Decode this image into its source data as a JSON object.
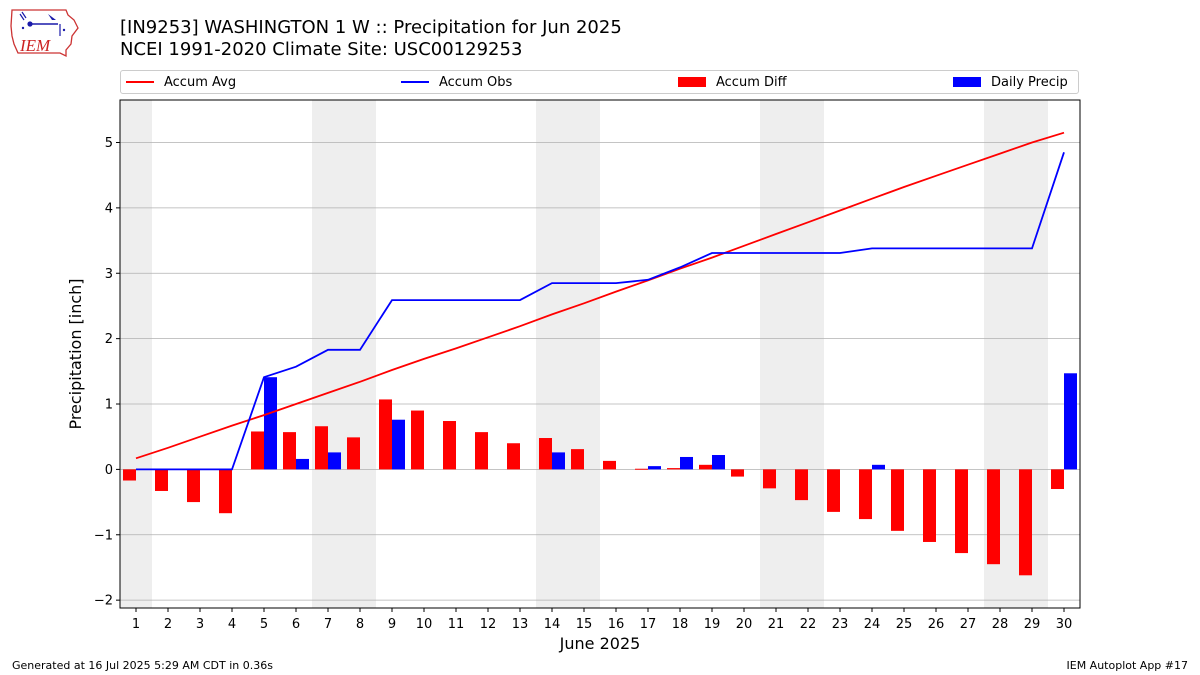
{
  "header": {
    "title_line1": "[IN9253] WASHINGTON 1 W :: Precipitation for Jun 2025",
    "title_line2": "NCEI 1991-2020 Climate Site: USC00129253"
  },
  "logo": {
    "text": "IEM",
    "icon": "iowa-state-map-logo-icon"
  },
  "legend": {
    "items": [
      {
        "label": "Accum Avg",
        "kind": "line",
        "color": "#ff0000"
      },
      {
        "label": "Accum Obs",
        "kind": "line",
        "color": "#0000ff"
      },
      {
        "label": "Accum Diff",
        "kind": "bar",
        "color": "#ff0000"
      },
      {
        "label": "Daily Precip",
        "kind": "bar",
        "color": "#0000ff"
      }
    ]
  },
  "footer": {
    "left": "Generated at 16 Jul 2025 5:29 AM CDT in 0.36s",
    "right": "IEM Autoplot App #17"
  },
  "colors": {
    "avg": "#ff0000",
    "obs": "#0000ff",
    "weekend": "#eeeeee",
    "grid": "#b0b0b0"
  },
  "chart_data": {
    "type": "bar",
    "xlabel": "June 2025",
    "ylabel": "Precipitation [inch]",
    "ylim": [
      -2.12,
      5.65
    ],
    "yticks": [
      -2,
      -1,
      0,
      1,
      2,
      3,
      4,
      5
    ],
    "ytick_labels": [
      "−2",
      "−1",
      "0",
      "1",
      "2",
      "3",
      "4",
      "5"
    ],
    "grid": "y",
    "legend_position": "top",
    "categories": [
      "1",
      "2",
      "3",
      "4",
      "5",
      "6",
      "7",
      "8",
      "9",
      "10",
      "11",
      "12",
      "13",
      "14",
      "15",
      "16",
      "17",
      "18",
      "19",
      "20",
      "21",
      "22",
      "23",
      "24",
      "25",
      "26",
      "27",
      "28",
      "29",
      "30"
    ],
    "weekend_days": [
      1,
      7,
      8,
      14,
      15,
      21,
      22,
      28,
      29
    ],
    "series": [
      {
        "name": "Accum Avg",
        "type": "line",
        "values": [
          0.17,
          0.33,
          0.5,
          0.67,
          0.83,
          1.0,
          1.17,
          1.34,
          1.52,
          1.69,
          1.85,
          2.02,
          2.19,
          2.37,
          2.54,
          2.72,
          2.89,
          3.07,
          3.24,
          3.42,
          3.6,
          3.78,
          3.96,
          4.14,
          4.32,
          4.49,
          4.66,
          4.83,
          5.0,
          5.15
        ]
      },
      {
        "name": "Accum Obs",
        "type": "line",
        "values": [
          0.0,
          0.0,
          0.0,
          0.0,
          1.41,
          1.57,
          1.83,
          1.83,
          2.59,
          2.59,
          2.59,
          2.59,
          2.59,
          2.85,
          2.85,
          2.85,
          2.9,
          3.09,
          3.31,
          3.31,
          3.31,
          3.31,
          3.31,
          3.38,
          3.38,
          3.38,
          3.38,
          3.38,
          3.38,
          4.85
        ]
      },
      {
        "name": "Accum Diff",
        "type": "bar",
        "values": [
          -0.17,
          -0.33,
          -0.5,
          -0.67,
          0.58,
          0.57,
          0.66,
          0.49,
          1.07,
          0.9,
          0.74,
          0.57,
          0.4,
          0.48,
          0.31,
          0.13,
          0.01,
          0.02,
          0.07,
          -0.11,
          -0.29,
          -0.47,
          -0.65,
          -0.76,
          -0.94,
          -1.11,
          -1.28,
          -1.45,
          -1.62,
          -0.3
        ]
      },
      {
        "name": "Daily Precip",
        "type": "bar",
        "values": [
          0,
          0,
          0,
          0,
          1.41,
          0.16,
          0.26,
          0,
          0.76,
          0,
          0,
          0,
          0,
          0.26,
          0,
          0,
          0.05,
          0.19,
          0.22,
          0,
          0,
          0,
          0,
          0.07,
          0,
          0,
          0,
          0,
          0,
          1.47
        ]
      }
    ]
  }
}
